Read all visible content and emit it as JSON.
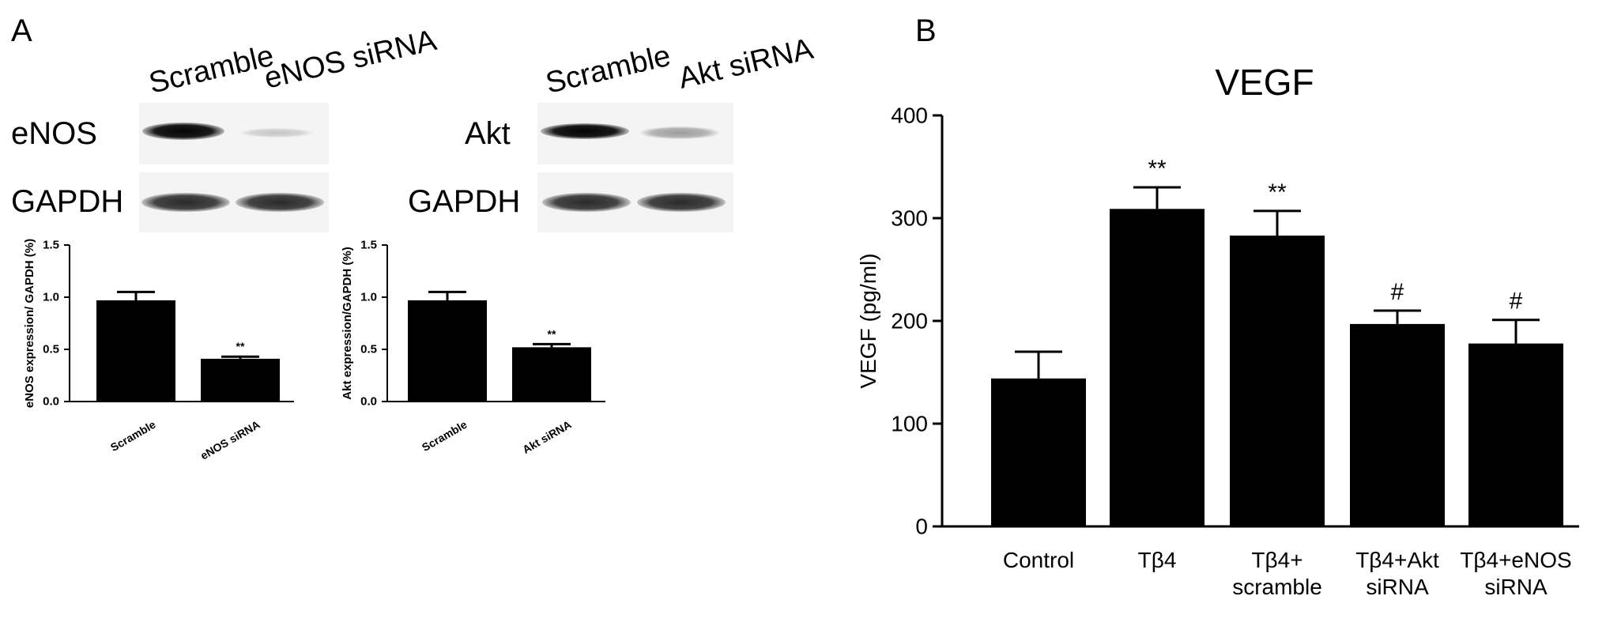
{
  "panel_a": {
    "letter": "A",
    "blot_left": {
      "lanes": [
        "Scramble",
        "eNOS siRNA"
      ],
      "rows": [
        "eNOS",
        "GAPDH"
      ]
    },
    "blot_right": {
      "lanes": [
        "Scramble",
        "Akt siRNA"
      ],
      "rows": [
        "Akt",
        "GAPDH"
      ]
    }
  },
  "panel_b": {
    "letter": "B"
  },
  "chart_data": [
    {
      "type": "bar",
      "title": "",
      "categories": [
        "Scramble",
        "eNOS siRNA"
      ],
      "values": [
        0.97,
        0.41
      ],
      "errors": [
        0.08,
        0.02
      ],
      "significance": [
        "",
        "**"
      ],
      "ylabel": "eNOS expression/ GAPDH (%)",
      "xlabel": "",
      "ylim": [
        0,
        1.5
      ],
      "yticks": [
        "0.0",
        "0.5",
        "1.0",
        "1.5"
      ],
      "grid": false
    },
    {
      "type": "bar",
      "title": "",
      "categories": [
        "Scramble",
        "Akt siRNA"
      ],
      "values": [
        0.97,
        0.52
      ],
      "errors": [
        0.08,
        0.03
      ],
      "significance": [
        "",
        "**"
      ],
      "ylabel": "Akt expression/GAPDH (%)",
      "xlabel": "",
      "ylim": [
        0,
        1.5
      ],
      "yticks": [
        "0.0",
        "0.5",
        "1.0",
        "1.5"
      ],
      "grid": false
    },
    {
      "type": "bar",
      "title": "VEGF",
      "categories": [
        [
          "Control"
        ],
        [
          "Tβ4"
        ],
        [
          "Tβ4+",
          "scramble"
        ],
        [
          "Tβ4+Akt",
          "siRNA"
        ],
        [
          "Tβ4+eNOS",
          "siRNA"
        ]
      ],
      "values": [
        144,
        309,
        283,
        197,
        178
      ],
      "errors": [
        26,
        21,
        24,
        13,
        23
      ],
      "significance": [
        "",
        "**",
        "**",
        "#",
        "#"
      ],
      "ylabel": "VEGF (pg/ml)",
      "xlabel": "",
      "ylim": [
        0,
        400
      ],
      "yticks": [
        "0",
        "100",
        "200",
        "300",
        "400"
      ],
      "grid": false
    }
  ]
}
